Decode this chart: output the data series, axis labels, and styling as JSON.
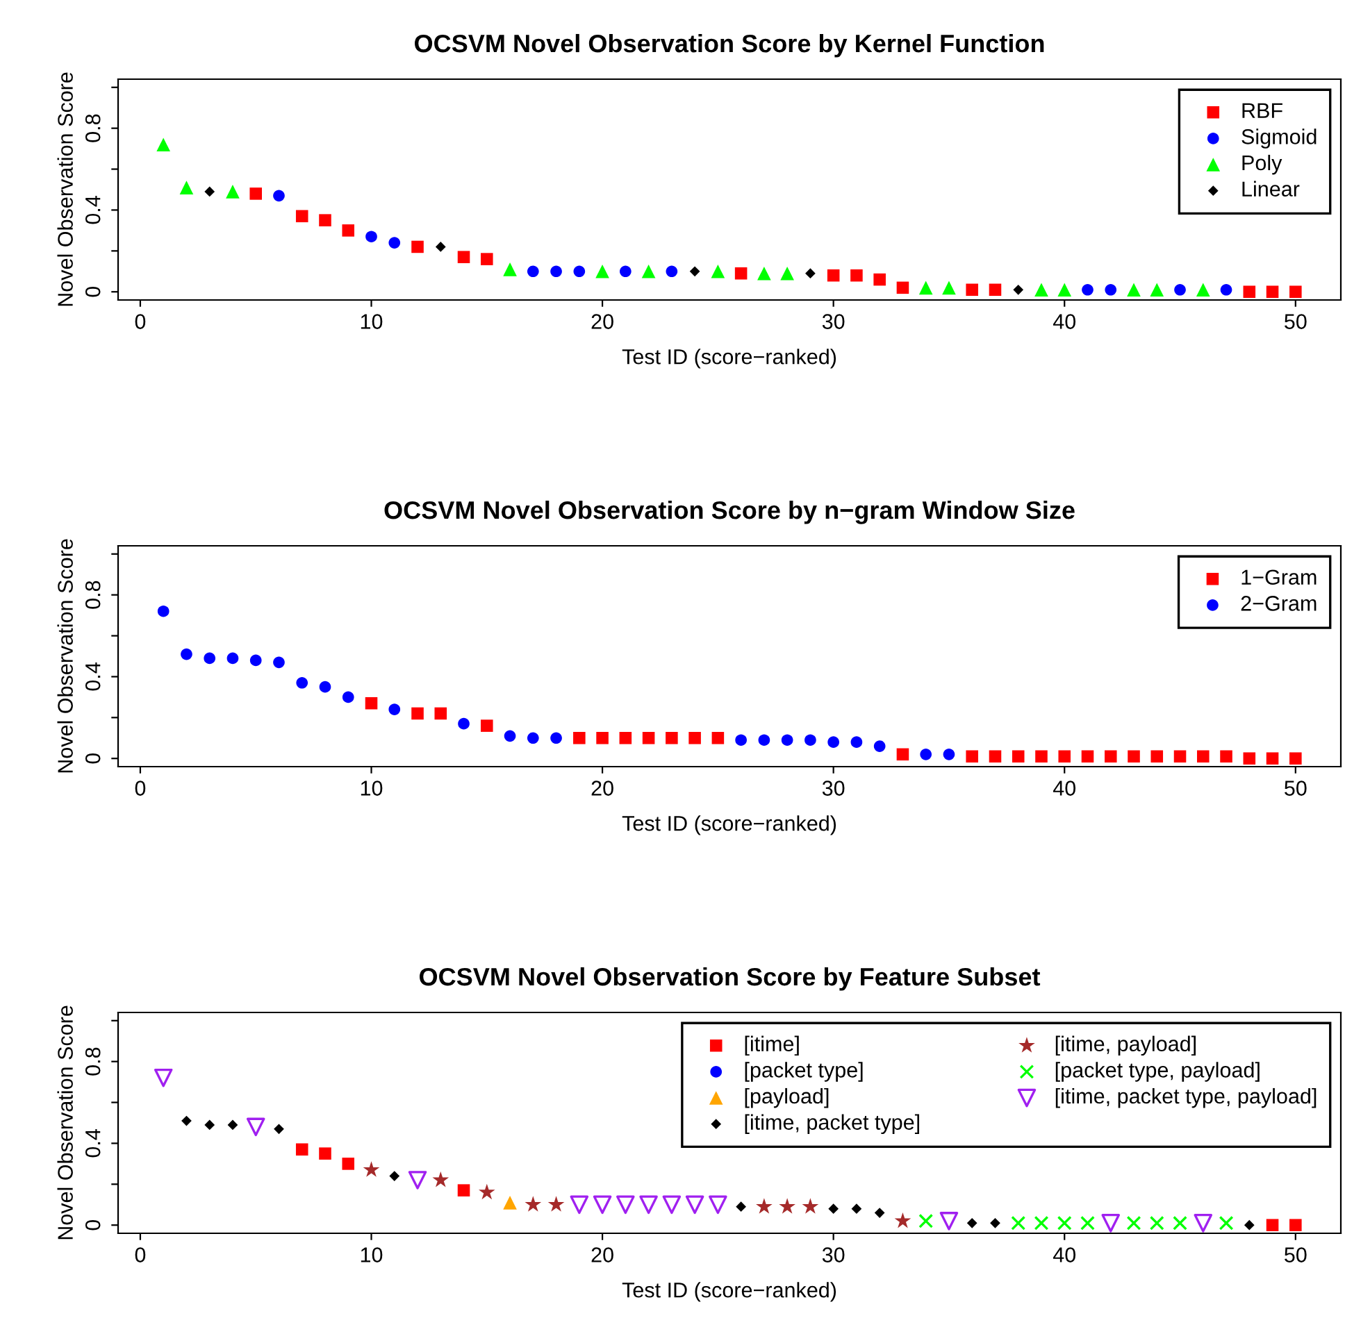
{
  "chart_data": [
    {
      "type": "scatter",
      "title": "OCSVM Novel Observation Score by Kernel Function",
      "xlabel": "Test ID (score−ranked)",
      "ylabel": "Novel Observation Score",
      "xlim": [
        -0.96,
        51.96
      ],
      "ylim": [
        -0.04,
        1.04
      ],
      "xticks": [
        0,
        10,
        20,
        30,
        40,
        50
      ],
      "yticks": [
        0,
        {
          "value": 0.2,
          "label": null
        },
        0.4,
        {
          "value": 0.6,
          "label": null
        },
        0.8,
        {
          "value": 1.0,
          "label": null
        }
      ],
      "grid": false,
      "legend": "top right",
      "series": [
        {
          "name": "RBF",
          "color": "#ff0000",
          "marker": "square",
          "x": [
            5,
            7,
            8,
            9,
            12,
            14,
            15,
            26,
            30,
            31,
            32,
            33,
            36,
            37,
            48,
            49,
            50
          ],
          "values": [
            0.48,
            0.37,
            0.35,
            0.3,
            0.22,
            0.17,
            0.16,
            0.09,
            0.08,
            0.08,
            0.06,
            0.02,
            0.01,
            0.01,
            0,
            0,
            0
          ]
        },
        {
          "name": "Sigmoid",
          "color": "#0000ff",
          "marker": "circle",
          "x": [
            6,
            10,
            11,
            17,
            18,
            19,
            21,
            23,
            41,
            42,
            45,
            47
          ],
          "values": [
            0.47,
            0.27,
            0.24,
            0.1,
            0.1,
            0.1,
            0.1,
            0.1,
            0.01,
            0.01,
            0.01,
            0.01
          ]
        },
        {
          "name": "Poly",
          "color": "#00ff00",
          "marker": "triangle",
          "x": [
            1,
            2,
            4,
            16,
            20,
            22,
            25,
            27,
            28,
            34,
            35,
            39,
            40,
            43,
            44,
            46
          ],
          "values": [
            0.72,
            0.51,
            0.49,
            0.11,
            0.1,
            0.1,
            0.1,
            0.09,
            0.09,
            0.02,
            0.02,
            0.01,
            0.01,
            0.01,
            0.01,
            0.01
          ]
        },
        {
          "name": "Linear",
          "color": "#000000",
          "marker": "diamond",
          "x": [
            3,
            13,
            24,
            29,
            38
          ],
          "values": [
            0.49,
            0.22,
            0.1,
            0.09,
            0.01
          ]
        }
      ]
    },
    {
      "type": "scatter",
      "title": "OCSVM Novel Observation Score by n−gram Window Size",
      "xlabel": "Test ID (score−ranked)",
      "ylabel": "Novel Observation Score",
      "xlim": [
        -0.96,
        51.96
      ],
      "ylim": [
        -0.04,
        1.04
      ],
      "xticks": [
        0,
        10,
        20,
        30,
        40,
        50
      ],
      "yticks": [
        0,
        {
          "value": 0.2,
          "label": null
        },
        0.4,
        {
          "value": 0.6,
          "label": null
        },
        0.8,
        {
          "value": 1.0,
          "label": null
        }
      ],
      "grid": false,
      "legend": "top right",
      "series": [
        {
          "name": "1−Gram",
          "color": "#ff0000",
          "marker": "square",
          "x": [
            10,
            12,
            13,
            15,
            19,
            20,
            21,
            22,
            23,
            24,
            25,
            33,
            36,
            37,
            38,
            39,
            40,
            41,
            42,
            43,
            44,
            45,
            46,
            47,
            48,
            49,
            50
          ],
          "values": [
            0.27,
            0.22,
            0.22,
            0.16,
            0.1,
            0.1,
            0.1,
            0.1,
            0.1,
            0.1,
            0.1,
            0.02,
            0.01,
            0.01,
            0.01,
            0.01,
            0.01,
            0.01,
            0.01,
            0.01,
            0.01,
            0.01,
            0.01,
            0.01,
            0,
            0,
            0
          ]
        },
        {
          "name": "2−Gram",
          "color": "#0000ff",
          "marker": "circle",
          "x": [
            1,
            2,
            3,
            4,
            5,
            6,
            7,
            8,
            9,
            11,
            14,
            16,
            17,
            18,
            26,
            27,
            28,
            29,
            30,
            31,
            32,
            34,
            35
          ],
          "values": [
            0.72,
            0.51,
            0.49,
            0.49,
            0.48,
            0.47,
            0.37,
            0.35,
            0.3,
            0.24,
            0.17,
            0.11,
            0.1,
            0.1,
            0.09,
            0.09,
            0.09,
            0.09,
            0.08,
            0.08,
            0.06,
            0.02,
            0.02
          ]
        }
      ]
    },
    {
      "type": "scatter",
      "title": "OCSVM Novel Observation Score by Feature Subset",
      "xlabel": "Test ID (score−ranked)",
      "ylabel": "Novel Observation Score",
      "xlim": [
        -0.96,
        51.96
      ],
      "ylim": [
        -0.04,
        1.04
      ],
      "xticks": [
        0,
        10,
        20,
        30,
        40,
        50
      ],
      "yticks": [
        0,
        {
          "value": 0.2,
          "label": null
        },
        0.4,
        {
          "value": 0.6,
          "label": null
        },
        0.8,
        {
          "value": 1.0,
          "label": null
        }
      ],
      "grid": false,
      "legend": "top right",
      "series": [
        {
          "name": "[itime]",
          "color": "#ff0000",
          "marker": "square",
          "x": [
            7,
            8,
            9,
            14,
            49,
            50
          ],
          "values": [
            0.37,
            0.35,
            0.3,
            0.17,
            0,
            0
          ]
        },
        {
          "name": "[packet type]",
          "color": "#0000ff",
          "marker": "circle"
        },
        {
          "name": "[payload]",
          "color": "#ffa500",
          "marker": "triangle",
          "x": [
            16
          ],
          "values": [
            0.11
          ]
        },
        {
          "name": "[itime, packet type]",
          "color": "#000000",
          "marker": "diamond",
          "x": [
            2,
            3,
            4,
            6,
            11,
            26,
            30,
            31,
            32,
            36,
            37,
            48
          ],
          "values": [
            0.51,
            0.49,
            0.49,
            0.47,
            0.24,
            0.09,
            0.08,
            0.08,
            0.06,
            0.01,
            0.01,
            0
          ]
        },
        {
          "name": "[itime, payload]",
          "color": "#a52a2a",
          "marker": "star",
          "x": [
            10,
            13,
            15,
            17,
            18,
            27,
            28,
            29,
            33
          ],
          "values": [
            0.27,
            0.22,
            0.16,
            0.1,
            0.1,
            0.09,
            0.09,
            0.09,
            0.02
          ]
        },
        {
          "name": "[packet type, payload]",
          "color": "#00ff00",
          "marker": "cross",
          "x": [
            34,
            38,
            39,
            40,
            41,
            43,
            44,
            45,
            47
          ],
          "values": [
            0.02,
            0.01,
            0.01,
            0.01,
            0.01,
            0.01,
            0.01,
            0.01,
            0.01
          ]
        },
        {
          "name": "[itime, packet type, payload]",
          "color": "#a020f0",
          "marker": "triangle_down",
          "x": [
            1,
            5,
            12,
            19,
            20,
            21,
            22,
            23,
            24,
            25,
            35,
            42,
            46
          ],
          "values": [
            0.72,
            0.48,
            0.22,
            0.1,
            0.1,
            0.1,
            0.1,
            0.1,
            0.1,
            0.1,
            0.02,
            0.01,
            0.01
          ]
        }
      ]
    }
  ]
}
